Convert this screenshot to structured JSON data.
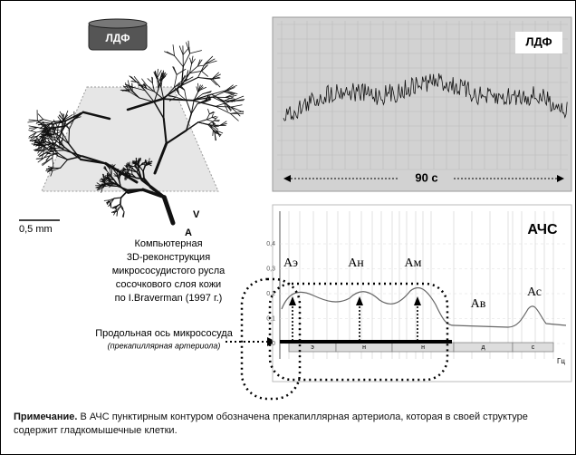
{
  "left": {
    "probe": "ЛДФ",
    "scale": "0,5 mm",
    "vein": "V",
    "artery": "A",
    "caption": [
      "Компьютерная",
      "3D-реконструкция",
      "микрососудистого русла",
      "сосочкового слоя кожи",
      "по I.Braverman (1997 г.)"
    ],
    "axis_label": "Продольная ось микрососуда",
    "axis_sublabel": "(прекапиллярная артериола)"
  },
  "ldf_panel": {
    "label": "ЛДФ",
    "duration": "90 с"
  },
  "spectrum_panel": {
    "title": "АЧС",
    "yticks": [
      "0,4",
      "0,3",
      "0,2",
      "0,1",
      "0"
    ],
    "peaks": [
      "Аэ",
      "Ан",
      "Ам",
      "Ав",
      "Ас"
    ],
    "bands": [
      "э",
      "н",
      "н",
      "д",
      "с"
    ],
    "x_unit": "Гц"
  },
  "note": {
    "label": "Примечание.",
    "text": "В АЧС пунктирным контуром обозначена прекапиллярная артериола, которая в своей структуре содержит гладкомышечные клетки."
  }
}
